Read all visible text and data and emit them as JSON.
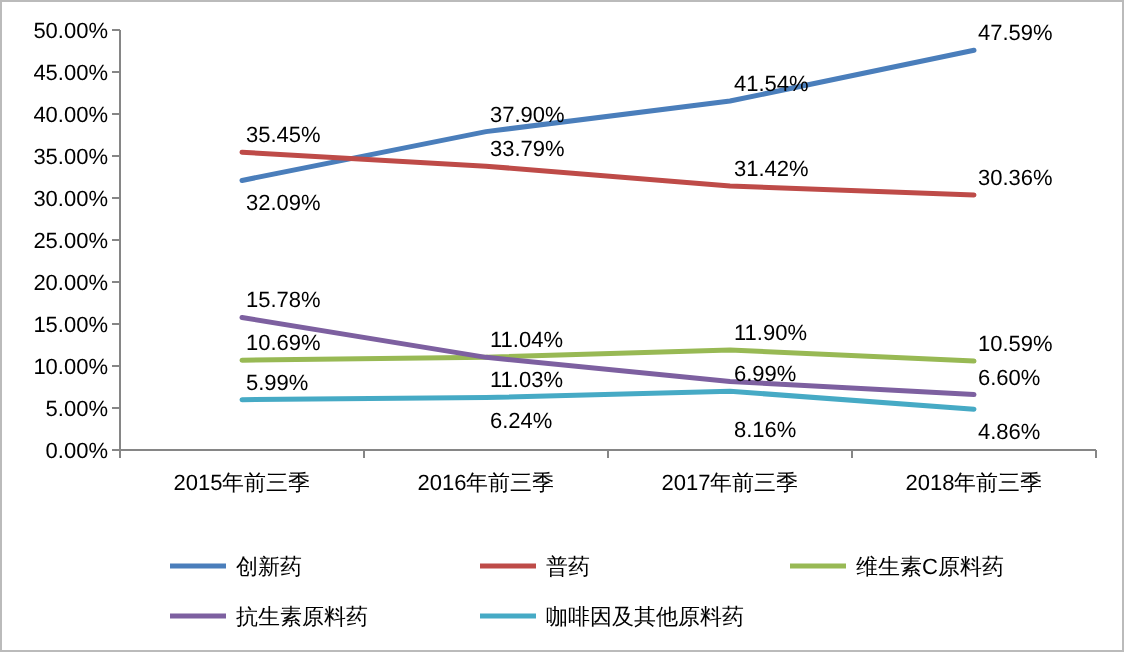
{
  "chart_data": {
    "type": "line",
    "categories": [
      "2015年前三季",
      "2016年前三季",
      "2017年前三季",
      "2018年前三季"
    ],
    "ylim": [
      0,
      50
    ],
    "yticks": [
      {
        "value": 0,
        "label": "0.00%"
      },
      {
        "value": 5,
        "label": "5.00%"
      },
      {
        "value": 10,
        "label": "10.00%"
      },
      {
        "value": 15,
        "label": "15.00%"
      },
      {
        "value": 20,
        "label": "20.00%"
      },
      {
        "value": 25,
        "label": "25.00%"
      },
      {
        "value": 30,
        "label": "30.00%"
      },
      {
        "value": 35,
        "label": "35.00%"
      },
      {
        "value": 40,
        "label": "40.00%"
      },
      {
        "value": 45,
        "label": "45.00%"
      },
      {
        "value": 50,
        "label": "50.00%"
      }
    ],
    "grid": false,
    "legend": "bottom",
    "marker": "none",
    "line_style": "solid",
    "series": [
      {
        "name": "创新药",
        "color": "#4a7ebb",
        "values": [
          32.09,
          37.9,
          41.54,
          47.59
        ],
        "value_labels": [
          "32.09%",
          "37.90%",
          "41.54%",
          "47.59%"
        ]
      },
      {
        "name": "普药",
        "color": "#be4b48",
        "values": [
          35.45,
          33.79,
          31.42,
          30.36
        ],
        "value_labels": [
          "35.45%",
          "33.79%",
          "31.42%",
          "30.36%"
        ]
      },
      {
        "name": "维生素C原料药",
        "color": "#98b954",
        "values": [
          10.69,
          11.04,
          11.9,
          10.59
        ],
        "value_labels": [
          "10.69%",
          "11.04%",
          "11.90%",
          "10.59%"
        ]
      },
      {
        "name": "抗生素原料药",
        "color": "#7d60a0",
        "values": [
          15.78,
          11.03,
          8.16,
          6.6
        ],
        "value_labels": [
          "15.78%",
          "11.03%",
          "8.16%",
          "6.60%"
        ]
      },
      {
        "name": "咖啡因及其他原料药",
        "color": "#46aac5",
        "values": [
          5.99,
          6.24,
          6.99,
          4.86
        ],
        "value_labels": [
          "5.99%",
          "6.24%",
          "6.99%",
          "4.86%"
        ]
      }
    ]
  }
}
